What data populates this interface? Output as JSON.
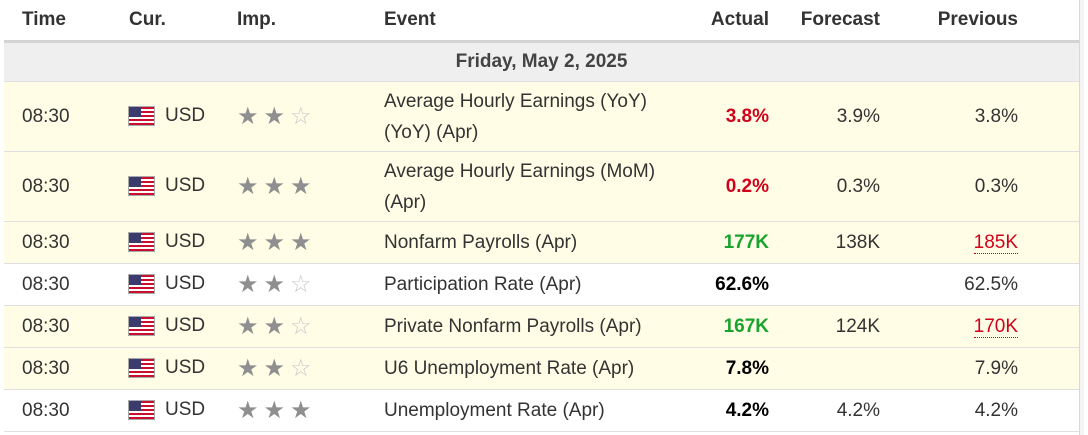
{
  "headers": {
    "time": "Time",
    "currency": "Cur.",
    "importance": "Imp.",
    "event": "Event",
    "actual": "Actual",
    "forecast": "Forecast",
    "previous": "Previous"
  },
  "day_header": "Friday, May 2, 2025",
  "colors": {
    "actual_red": "#d0021b",
    "actual_green": "#19a42e",
    "actual_neutral": "#000000",
    "highlight_row": "#fffde6",
    "day_bar": "#efefef"
  },
  "rows": [
    {
      "time": "08:30",
      "currency": "USD",
      "flag": "us-flag-icon",
      "stars": 2,
      "event_line1": "Average Hourly Earnings (YoY)",
      "event_line2": "(YoY) (Apr)",
      "actual": "3.8%",
      "actual_color": "red",
      "forecast": "3.9%",
      "previous": "3.8%",
      "previous_revised": false,
      "highlight": true
    },
    {
      "time": "08:30",
      "currency": "USD",
      "flag": "us-flag-icon",
      "stars": 3,
      "event_line1": "Average Hourly Earnings (MoM)",
      "event_line2": "(Apr)",
      "actual": "0.2%",
      "actual_color": "red",
      "forecast": "0.3%",
      "previous": "0.3%",
      "previous_revised": false,
      "highlight": true
    },
    {
      "time": "08:30",
      "currency": "USD",
      "flag": "us-flag-icon",
      "stars": 3,
      "event_line1": "Nonfarm Payrolls (Apr)",
      "event_line2": "",
      "actual": "177K",
      "actual_color": "green",
      "forecast": "138K",
      "previous": "185K",
      "previous_revised": true,
      "highlight": true
    },
    {
      "time": "08:30",
      "currency": "USD",
      "flag": "us-flag-icon",
      "stars": 2,
      "event_line1": "Participation Rate (Apr)",
      "event_line2": "",
      "actual": "62.6%",
      "actual_color": "neutral",
      "forecast": "",
      "previous": "62.5%",
      "previous_revised": false,
      "highlight": false
    },
    {
      "time": "08:30",
      "currency": "USD",
      "flag": "us-flag-icon",
      "stars": 2,
      "event_line1": "Private Nonfarm Payrolls (Apr)",
      "event_line2": "",
      "actual": "167K",
      "actual_color": "green",
      "forecast": "124K",
      "previous": "170K",
      "previous_revised": true,
      "highlight": true
    },
    {
      "time": "08:30",
      "currency": "USD",
      "flag": "us-flag-icon",
      "stars": 2,
      "event_line1": "U6 Unemployment Rate (Apr)",
      "event_line2": "",
      "actual": "7.8%",
      "actual_color": "neutral",
      "forecast": "",
      "previous": "7.9%",
      "previous_revised": false,
      "highlight": true
    },
    {
      "time": "08:30",
      "currency": "USD",
      "flag": "us-flag-icon",
      "stars": 3,
      "event_line1": "Unemployment Rate (Apr)",
      "event_line2": "",
      "actual": "4.2%",
      "actual_color": "neutral",
      "forecast": "4.2%",
      "previous": "4.2%",
      "previous_revised": false,
      "highlight": false
    }
  ]
}
